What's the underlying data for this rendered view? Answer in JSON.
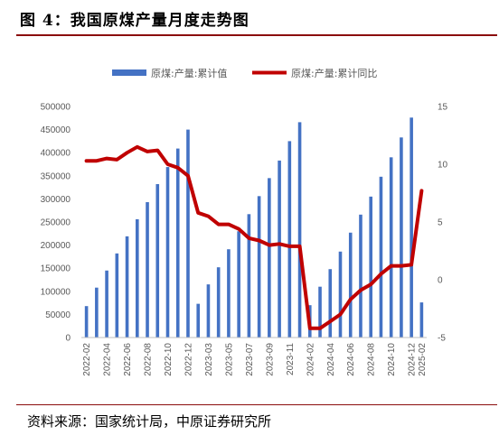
{
  "figure_title": "图 4：我国原煤产量月度走势图",
  "source_note": "资料来源：国家统计局，中原证券研究所",
  "chart_data": {
    "type": "bar",
    "categories": [
      "2022-02",
      "2022-03",
      "2022-04",
      "2022-05",
      "2022-06",
      "2022-07",
      "2022-08",
      "2022-09",
      "2022-10",
      "2022-11",
      "2022-12",
      "2023-02",
      "2023-03",
      "2023-04",
      "2023-05",
      "2023-06",
      "2023-07",
      "2023-08",
      "2023-09",
      "2023-10",
      "2023-11",
      "2023-12",
      "2024-02",
      "2024-03",
      "2024-04",
      "2024-05",
      "2024-06",
      "2024-07",
      "2024-08",
      "2024-09",
      "2024-10",
      "2024-11",
      "2024-12",
      "2025-02"
    ],
    "tick_labels": [
      "2022-02",
      "2022-04",
      "2022-06",
      "2022-08",
      "2022-10",
      "2022-12",
      "2023-03",
      "2023-05",
      "2023-07",
      "2023-09",
      "2023-11",
      "2024-02",
      "2024-04",
      "2024-06",
      "2024-08",
      "2024-10",
      "2024-12",
      "2025-02"
    ],
    "series": [
      {
        "name": "原煤:产量:累计值",
        "kind": "bar",
        "axis": "left",
        "color": "#4472c4",
        "values": [
          68000,
          108000,
          145000,
          182000,
          219000,
          256000,
          293000,
          332000,
          369000,
          409000,
          450000,
          73000,
          115000,
          152000,
          191000,
          230000,
          267000,
          306000,
          345000,
          383000,
          425000,
          466000,
          70000,
          110000,
          148000,
          186000,
          227000,
          266000,
          305000,
          348000,
          390000,
          433000,
          476000,
          76000
        ]
      },
      {
        "name": "原煤:产量:累计同比",
        "kind": "line",
        "axis": "right",
        "color": "#c00000",
        "values": [
          10.3,
          10.3,
          10.5,
          10.4,
          11.0,
          11.5,
          11.1,
          11.2,
          10.0,
          9.7,
          9.0,
          5.8,
          5.5,
          4.8,
          4.8,
          4.4,
          3.6,
          3.4,
          3.0,
          3.1,
          2.9,
          2.9,
          -4.2,
          -4.2,
          -3.6,
          -3.0,
          -1.7,
          -0.9,
          -0.4,
          0.5,
          1.2,
          1.2,
          1.3,
          7.7
        ]
      }
    ],
    "y_left": {
      "min": 0,
      "max": 500000,
      "step": 50000,
      "tick_labels": [
        "0",
        "50000",
        "100000",
        "150000",
        "200000",
        "250000",
        "300000",
        "350000",
        "400000",
        "450000",
        "500000"
      ]
    },
    "y_right": {
      "min": -5,
      "max": 15,
      "step": 5,
      "tick_labels": [
        "-5",
        "0",
        "5",
        "10",
        "15"
      ]
    },
    "legend_placement": "top-center",
    "grid": false
  }
}
